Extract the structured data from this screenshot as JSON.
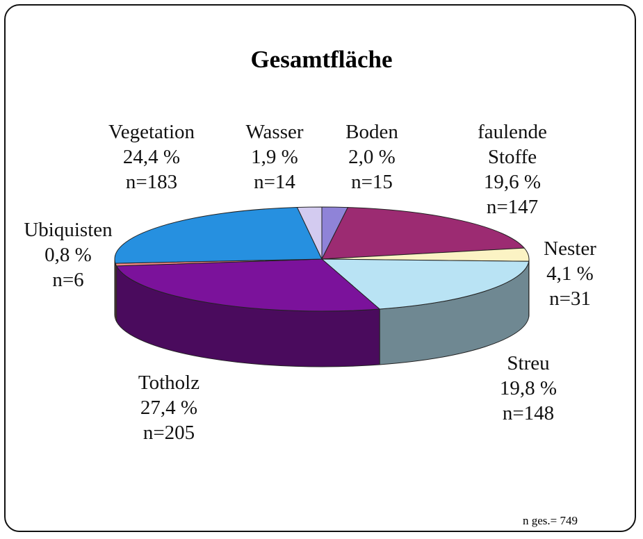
{
  "chart_data": {
    "type": "pie",
    "title": "Gesamtfläche",
    "categories": [
      "Boden",
      "faulende Stoffe",
      "Nester",
      "Streu",
      "Totholz",
      "Ubiquisten",
      "Vegetation",
      "Wasser"
    ],
    "values": [
      2.0,
      19.6,
      4.1,
      19.8,
      27.4,
      0.8,
      24.4,
      1.9
    ],
    "value_labels": [
      "2,0 %",
      "19,6 %",
      "4,1 %",
      "19,8 %",
      "27,4 %",
      "0,8 %",
      "24,4 %",
      "1,9 %"
    ],
    "counts": [
      15,
      147,
      31,
      148,
      205,
      6,
      183,
      14
    ],
    "count_labels": [
      "n=15",
      "n=147",
      "n=31",
      "n=148",
      "n=205",
      "n=6",
      "n=183",
      "n=14"
    ],
    "colors": [
      "#8f83d8",
      "#9c2b72",
      "#fbf3c4",
      "#b9e3f4",
      "#7b129b",
      "#f28a84",
      "#2690e0",
      "#d3cbf0"
    ],
    "total": {
      "value": 749,
      "label": "n ges.= 749"
    }
  }
}
